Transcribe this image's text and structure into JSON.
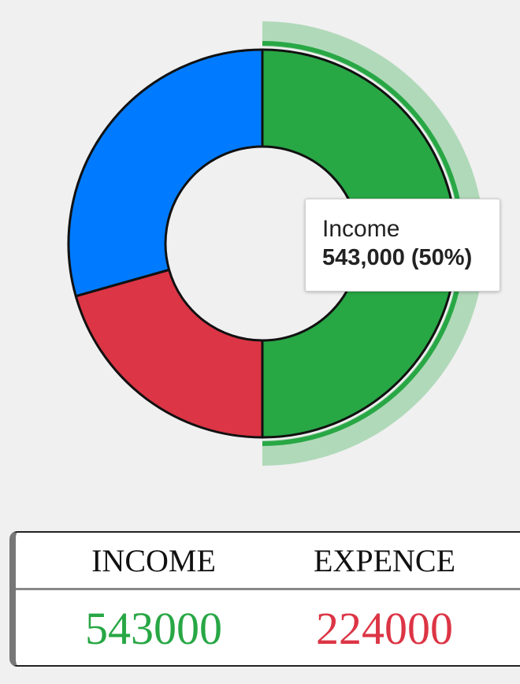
{
  "chart_data": {
    "type": "pie",
    "variant": "donut",
    "slices": [
      {
        "name": "Income",
        "value": 543000,
        "color": "#28a745"
      },
      {
        "name": "",
        "value": 224000,
        "color": "#dc3545"
      },
      {
        "name": "",
        "value": 319000,
        "color": "#007bff"
      }
    ],
    "highlighted": "Income",
    "tooltip": {
      "label": "Income",
      "value_text": "543,000 (50%)"
    }
  },
  "summary": {
    "income_label": "INCOME",
    "expence_label": "EXPENCE",
    "income_value": "543000",
    "expence_value": "224000",
    "income_color": "#28a745",
    "expence_color": "#dc3545"
  }
}
